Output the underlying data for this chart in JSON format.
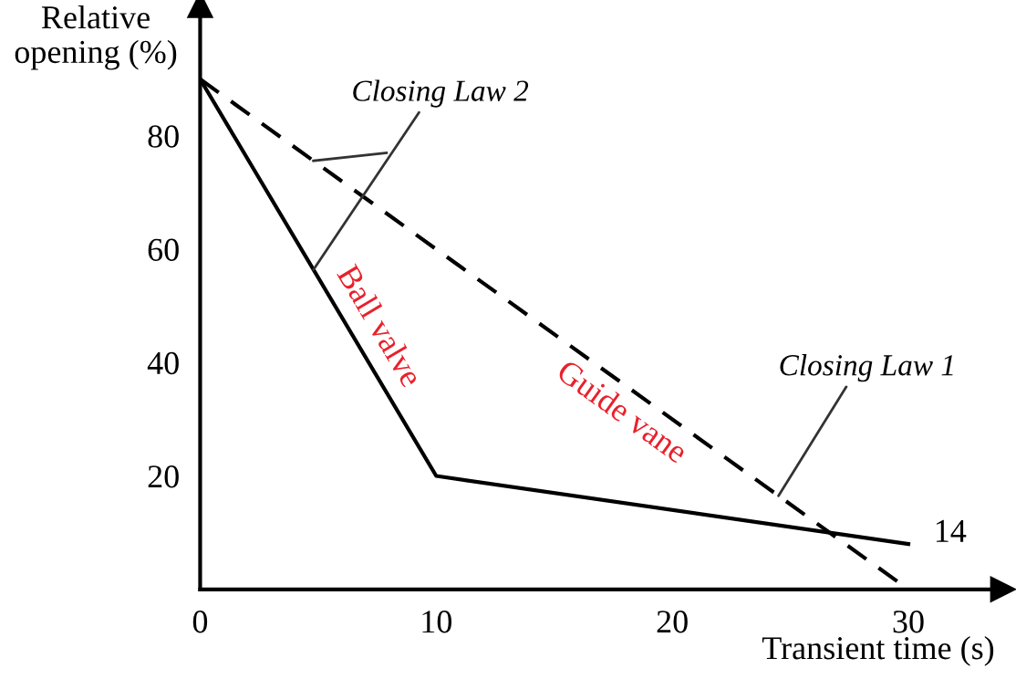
{
  "chart_data": {
    "type": "line",
    "xlabel": "Transient time (s)",
    "ylabel": "Relative\nopening (%)",
    "series": [
      {
        "name": "Ball valve",
        "color": "#000000",
        "x": [
          0,
          10,
          30
        ],
        "values": [
          90,
          20,
          8
        ],
        "line_style": "solid"
      },
      {
        "name": "Guide vane",
        "color": "#000000",
        "x": [
          0,
          30
        ],
        "values": [
          90,
          0
        ],
        "line_style": "dashed"
      }
    ],
    "xlim": [
      0,
      34
    ],
    "ylim": [
      0,
      103
    ],
    "xticks": [
      0,
      10,
      20,
      30
    ],
    "yticks": [
      20,
      40,
      60,
      80
    ],
    "annotations": [
      {
        "text": "Closing Law 2",
        "x": 4.8,
        "y": 56.4
      },
      {
        "text": "Closing Law 1",
        "x": 24.5,
        "y": 16.5
      },
      {
        "text": "14",
        "x": 30,
        "y": 8
      }
    ],
    "grid": false,
    "marker": "none"
  }
}
